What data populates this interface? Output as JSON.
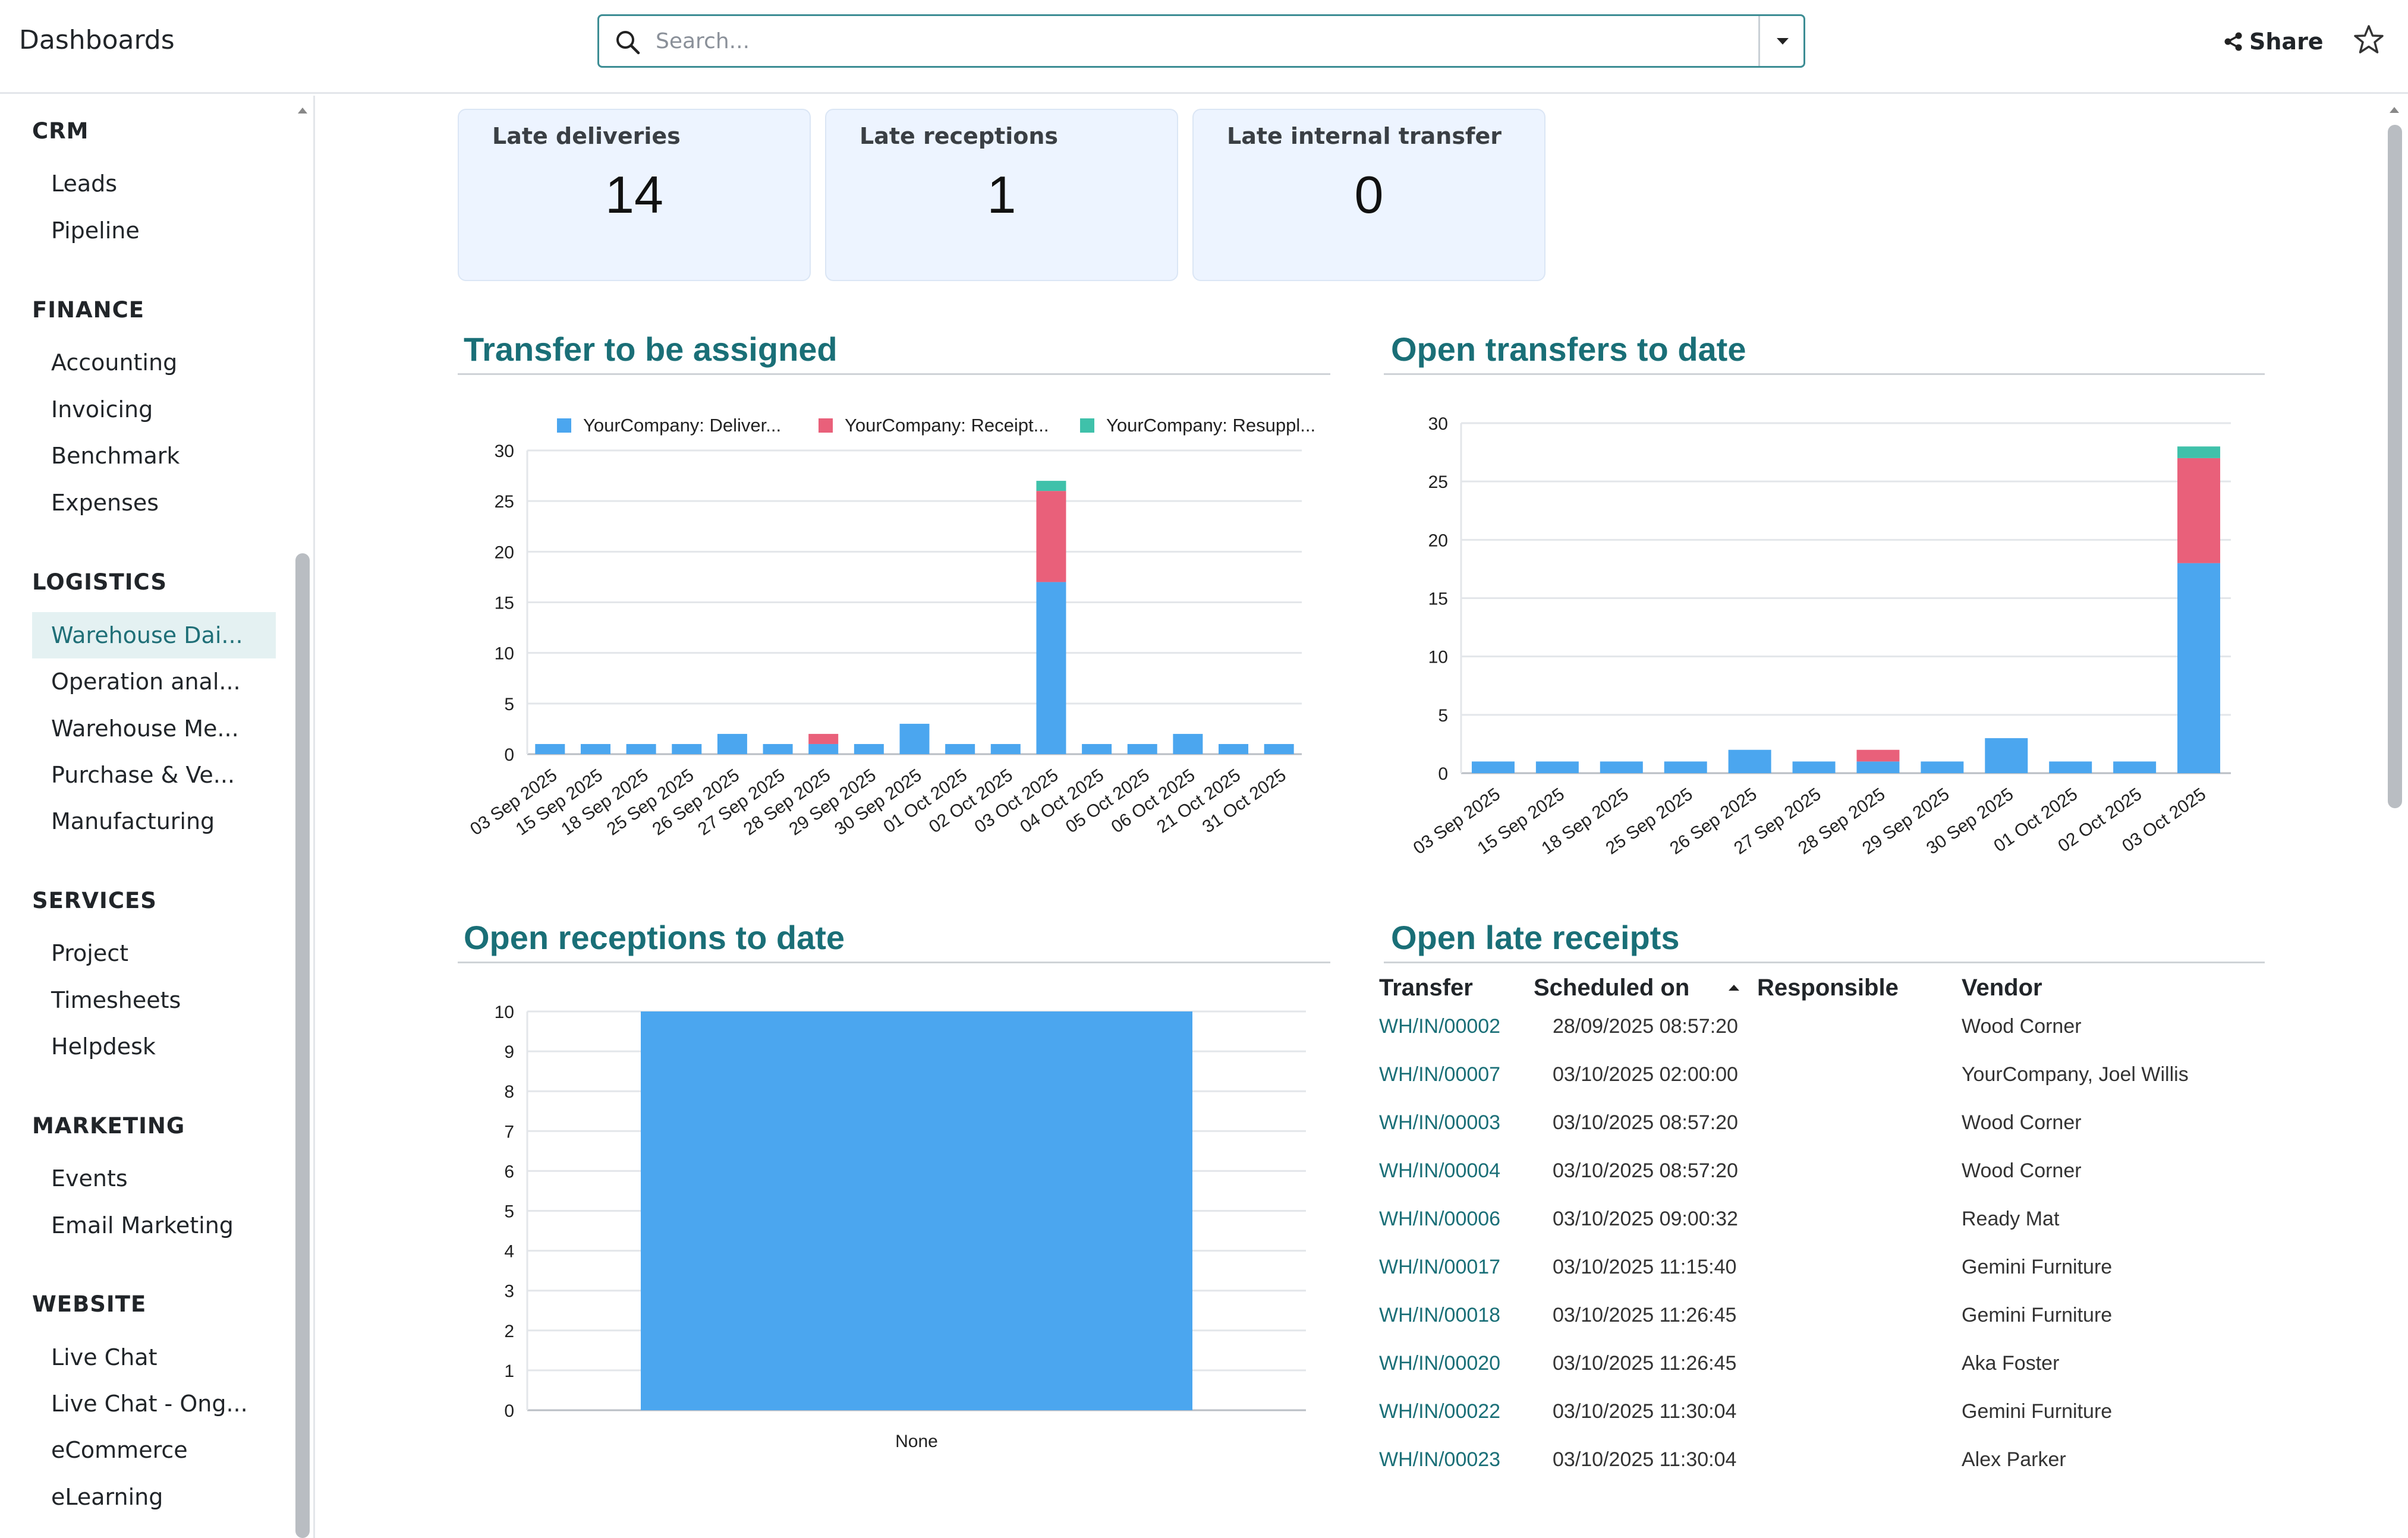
{
  "header": {
    "title": "Dashboards",
    "search_placeholder": "Search...",
    "share_label": "Share"
  },
  "sidebar": {
    "sections": [
      {
        "title": "CRM",
        "items": [
          "Leads",
          "Pipeline"
        ]
      },
      {
        "title": "FINANCE",
        "items": [
          "Accounting",
          "Invoicing",
          "Benchmark",
          "Expenses"
        ]
      },
      {
        "title": "LOGISTICS",
        "items": [
          "Warehouse Dai...",
          "Operation anal...",
          "Warehouse Me...",
          "Purchase & Ve...",
          "Manufacturing"
        ]
      },
      {
        "title": "SERVICES",
        "items": [
          "Project",
          "Timesheets",
          "Helpdesk"
        ]
      },
      {
        "title": "MARKETING",
        "items": [
          "Events",
          "Email Marketing"
        ]
      },
      {
        "title": "WEBSITE",
        "items": [
          "Live Chat",
          "Live Chat - Ong...",
          "eCommerce",
          "eLearning"
        ]
      }
    ],
    "active_item": "Warehouse Dai..."
  },
  "kpis": [
    {
      "label": "Late deliveries",
      "value": "14"
    },
    {
      "label": "Late receptions",
      "value": "1"
    },
    {
      "label": "Late internal transfer",
      "value": "0"
    }
  ],
  "sections": {
    "transfer_assigned": "Transfer to be assigned",
    "open_transfers": "Open transfers to date",
    "open_receptions": "Open receptions to date",
    "late_receipts": "Open late receipts"
  },
  "colors": {
    "blue": "#4ba6ef",
    "red": "#e9607a",
    "teal": "#3fc1aa",
    "accent": "#1a6f77"
  },
  "chart_data": [
    {
      "type": "bar",
      "stacked": true,
      "categories": [
        "03 Sep 2025",
        "15 Sep 2025",
        "18 Sep 2025",
        "25 Sep 2025",
        "26 Sep 2025",
        "27 Sep 2025",
        "28 Sep 2025",
        "29 Sep 2025",
        "30 Sep 2025",
        "01 Oct 2025",
        "02 Oct 2025",
        "03 Oct 2025",
        "04 Oct 2025",
        "05 Oct 2025",
        "06 Oct 2025",
        "21 Oct 2025",
        "31 Oct 2025"
      ],
      "series": [
        {
          "name": "YourCompany: Deliver...",
          "color": "#4ba6ef",
          "values": [
            1,
            1,
            1,
            1,
            2,
            1,
            1,
            1,
            3,
            1,
            1,
            17,
            1,
            1,
            2,
            1,
            1
          ]
        },
        {
          "name": "YourCompany: Receipt...",
          "color": "#e9607a",
          "values": [
            0,
            0,
            0,
            0,
            0,
            0,
            1,
            0,
            0,
            0,
            0,
            9,
            0,
            0,
            0,
            0,
            0
          ]
        },
        {
          "name": "YourCompany: Resuppl...",
          "color": "#3fc1aa",
          "values": [
            0,
            0,
            0,
            0,
            0,
            0,
            0,
            0,
            0,
            0,
            0,
            1,
            0,
            0,
            0,
            0,
            0
          ]
        }
      ],
      "ylim": [
        0,
        30
      ],
      "yticks": [
        0,
        5,
        10,
        15,
        20,
        25,
        30
      ],
      "legend": "top",
      "grid": true
    },
    {
      "type": "bar",
      "stacked": true,
      "categories": [
        "03 Sep 2025",
        "15 Sep 2025",
        "18 Sep 2025",
        "25 Sep 2025",
        "26 Sep 2025",
        "27 Sep 2025",
        "28 Sep 2025",
        "29 Sep 2025",
        "30 Sep 2025",
        "01 Oct 2025",
        "02 Oct 2025",
        "03 Oct 2025"
      ],
      "series": [
        {
          "color": "#4ba6ef",
          "values": [
            1,
            1,
            1,
            1,
            2,
            1,
            1,
            1,
            3,
            1,
            1,
            18
          ]
        },
        {
          "color": "#e9607a",
          "values": [
            0,
            0,
            0,
            0,
            0,
            0,
            1,
            0,
            0,
            0,
            0,
            9
          ]
        },
        {
          "color": "#3fc1aa",
          "values": [
            0,
            0,
            0,
            0,
            0,
            0,
            0,
            0,
            0,
            0,
            0,
            1
          ]
        }
      ],
      "ylim": [
        0,
        30
      ],
      "yticks": [
        0,
        5,
        10,
        15,
        20,
        25,
        30
      ],
      "grid": true
    },
    {
      "type": "bar",
      "categories": [
        "None"
      ],
      "series": [
        {
          "color": "#4ba6ef",
          "values": [
            10
          ]
        }
      ],
      "ylim": [
        0,
        10
      ],
      "yticks": [
        0,
        1,
        2,
        3,
        4,
        5,
        6,
        7,
        8,
        9,
        10
      ],
      "grid": true
    }
  ],
  "late_table": {
    "columns": [
      "Transfer",
      "Scheduled on",
      "Responsible",
      "Vendor"
    ],
    "rows": [
      {
        "transfer": "WH/IN/00002",
        "scheduled": "28/09/2025 08:57:20",
        "responsible": "",
        "vendor": "Wood Corner"
      },
      {
        "transfer": "WH/IN/00007",
        "scheduled": "03/10/2025 02:00:00",
        "responsible": "",
        "vendor": "YourCompany, Joel Willis"
      },
      {
        "transfer": "WH/IN/00003",
        "scheduled": "03/10/2025 08:57:20",
        "responsible": "",
        "vendor": "Wood Corner"
      },
      {
        "transfer": "WH/IN/00004",
        "scheduled": "03/10/2025 08:57:20",
        "responsible": "",
        "vendor": "Wood Corner"
      },
      {
        "transfer": "WH/IN/00006",
        "scheduled": "03/10/2025 09:00:32",
        "responsible": "",
        "vendor": "Ready Mat"
      },
      {
        "transfer": "WH/IN/00017",
        "scheduled": "03/10/2025 11:15:40",
        "responsible": "",
        "vendor": "Gemini Furniture"
      },
      {
        "transfer": "WH/IN/00018",
        "scheduled": "03/10/2025 11:26:45",
        "responsible": "",
        "vendor": "Gemini Furniture"
      },
      {
        "transfer": "WH/IN/00020",
        "scheduled": "03/10/2025 11:26:45",
        "responsible": "",
        "vendor": "Aka Foster"
      },
      {
        "transfer": "WH/IN/00022",
        "scheduled": "03/10/2025 11:30:04",
        "responsible": "",
        "vendor": "Gemini Furniture"
      },
      {
        "transfer": "WH/IN/00023",
        "scheduled": "03/10/2025 11:30:04",
        "responsible": "",
        "vendor": "Alex Parker"
      }
    ]
  }
}
